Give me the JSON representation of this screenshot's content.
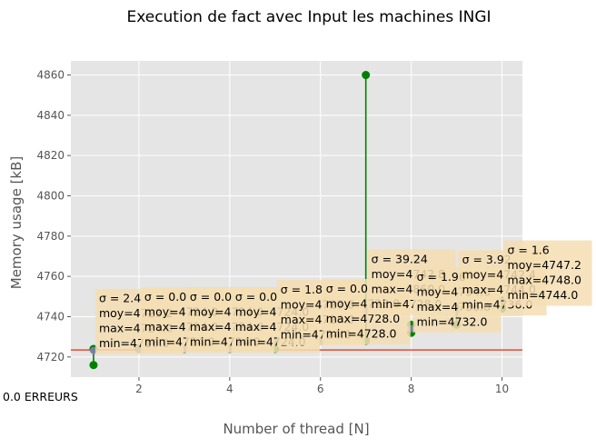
{
  "chart_data": {
    "type": "scatter",
    "title": "Execution de fact avec Input les machines INGI",
    "xlabel": "Number of thread [N]",
    "ylabel": "Memory usage [kB]",
    "xlim": [
      0.5,
      10.45
    ],
    "ylim": [
      4710,
      4867
    ],
    "xticks": [
      2,
      4,
      6,
      8,
      10
    ],
    "yticks": [
      4720,
      4740,
      4760,
      4780,
      4800,
      4820,
      4840,
      4860
    ],
    "grid": true,
    "baseline": 4723.5,
    "footer_text": "0.0 ERREURS",
    "colors": {
      "background": "#e5e5e5",
      "grid": "#ffffff",
      "range": "#008000",
      "mean": "#8a7fc0",
      "baseline": "#e24a33",
      "annotation_box": "#f5deb3"
    },
    "points": [
      {
        "x": 1,
        "mean": 4723.2,
        "min": 4716.0,
        "max": 4724.0,
        "label": [
          "σ = 2.4",
          "moy=4723.2",
          "max=4724.0",
          "min=4716.0"
        ]
      },
      {
        "x": 2,
        "mean": 4724.0,
        "min": 4724.0,
        "max": 4724.0,
        "label": [
          "σ = 0.0",
          "moy=4724.0",
          "max=4724.0",
          "min=4724.0"
        ]
      },
      {
        "x": 3,
        "mean": 4724.0,
        "min": 4724.0,
        "max": 4724.0,
        "label": [
          "σ = 0.0",
          "moy=4724.0",
          "max=4724.0",
          "min=4724.0"
        ]
      },
      {
        "x": 4,
        "mean": 4724.0,
        "min": 4724.0,
        "max": 4724.0,
        "label": [
          "σ = 0.0",
          "moy=4724.0",
          "max=4724.0",
          "min=4724.0"
        ]
      },
      {
        "x": 5,
        "mean": 4727.6,
        "min": 4724.0,
        "max": 4728.0,
        "label": [
          "σ = 1.8",
          "moy=4727.6",
          "max=4728.0",
          "min=4724.0"
        ]
      },
      {
        "x": 6,
        "mean": 4728.0,
        "min": 4728.0,
        "max": 4728.0,
        "label": [
          "σ = 0.0",
          "moy=4728.0",
          "max=4728.0",
          "min=4728.0"
        ]
      },
      {
        "x": 7,
        "mean": 4742.8,
        "min": 4728.0,
        "max": 4860.0,
        "label": [
          "σ = 39.24",
          "moy=4742.8",
          "max=4860.0",
          "min=4728.0"
        ]
      },
      {
        "x": 8,
        "mean": 4734.0,
        "min": 4732.0,
        "max": 4736.0,
        "label": [
          "σ = 1.96",
          "moy=4734.0",
          "max=4736.0",
          "min=4732.0"
        ]
      },
      {
        "x": 9,
        "mean": 4742.4,
        "min": 4736.0,
        "max": 4744.0,
        "label": [
          "σ = 3.92",
          "moy=4742.4",
          "max=4744.0",
          "min=4736.0"
        ]
      },
      {
        "x": 10,
        "mean": 4747.2,
        "min": 4744.0,
        "max": 4748.0,
        "label": [
          "σ = 1.6",
          "moy=4747.2",
          "max=4748.0",
          "min=4744.0"
        ]
      }
    ]
  }
}
